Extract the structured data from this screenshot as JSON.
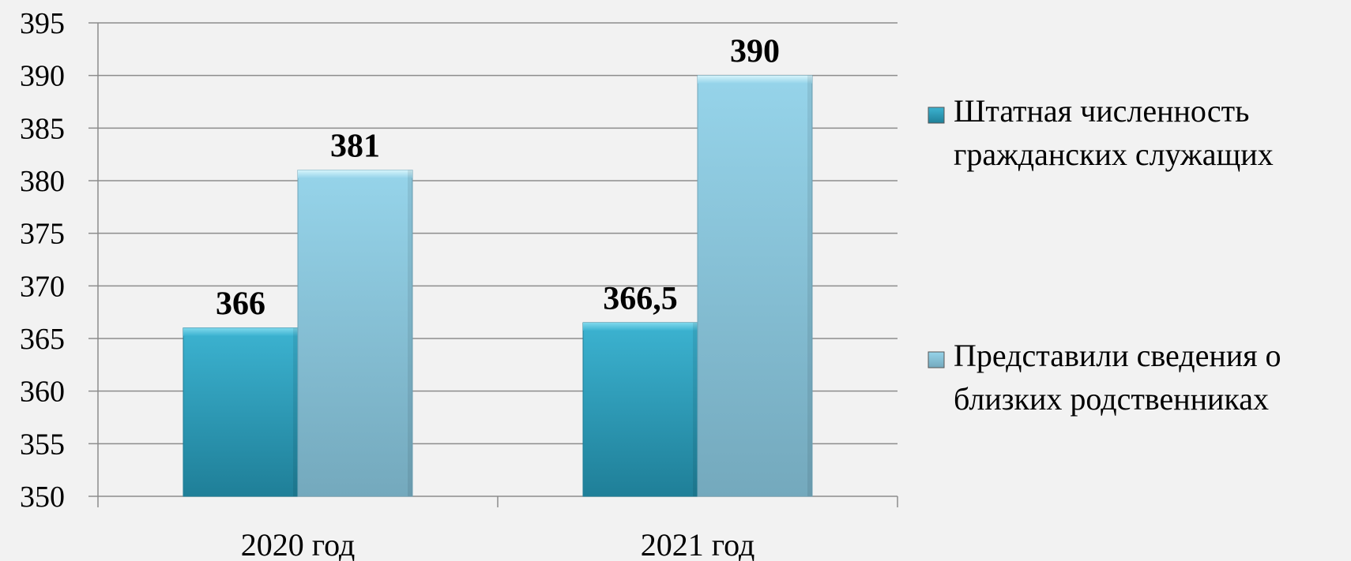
{
  "chart_data": {
    "type": "bar",
    "categories": [
      "2020 год",
      "2021 год"
    ],
    "series": [
      {
        "name": "Штатная численность гражданских служащих",
        "values": [
          366,
          366.5
        ],
        "labels": [
          "366",
          "366,5"
        ],
        "color": "#2a9bb8",
        "legend_lines": [
          "Штатная численность",
          "гражданских служащих"
        ]
      },
      {
        "name": "Представили сведения о близких родственниках",
        "values": [
          381,
          390
        ],
        "labels": [
          "381",
          "390"
        ],
        "color": "#8fcbe0",
        "legend_lines": [
          "Представили сведения о",
          "близких родственниках"
        ]
      }
    ],
    "ylim": [
      350,
      395
    ],
    "yticks": [
      350,
      355,
      360,
      365,
      370,
      375,
      380,
      385,
      390,
      395
    ],
    "grid": true,
    "legend_position": "right"
  }
}
